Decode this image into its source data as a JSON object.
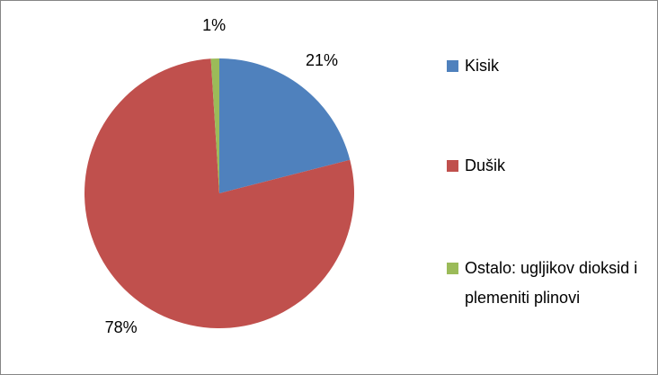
{
  "chart_data": {
    "type": "pie",
    "categories": [
      "Kisik",
      "Dušik",
      "Ostalo: ugljikov dioksid i plemeniti plinovi"
    ],
    "values": [
      21,
      78,
      1
    ],
    "value_labels": [
      "21%",
      "78%",
      "1%"
    ],
    "colors": [
      "#4f81bd",
      "#c0504d",
      "#9bbb59"
    ],
    "legend": "right"
  }
}
